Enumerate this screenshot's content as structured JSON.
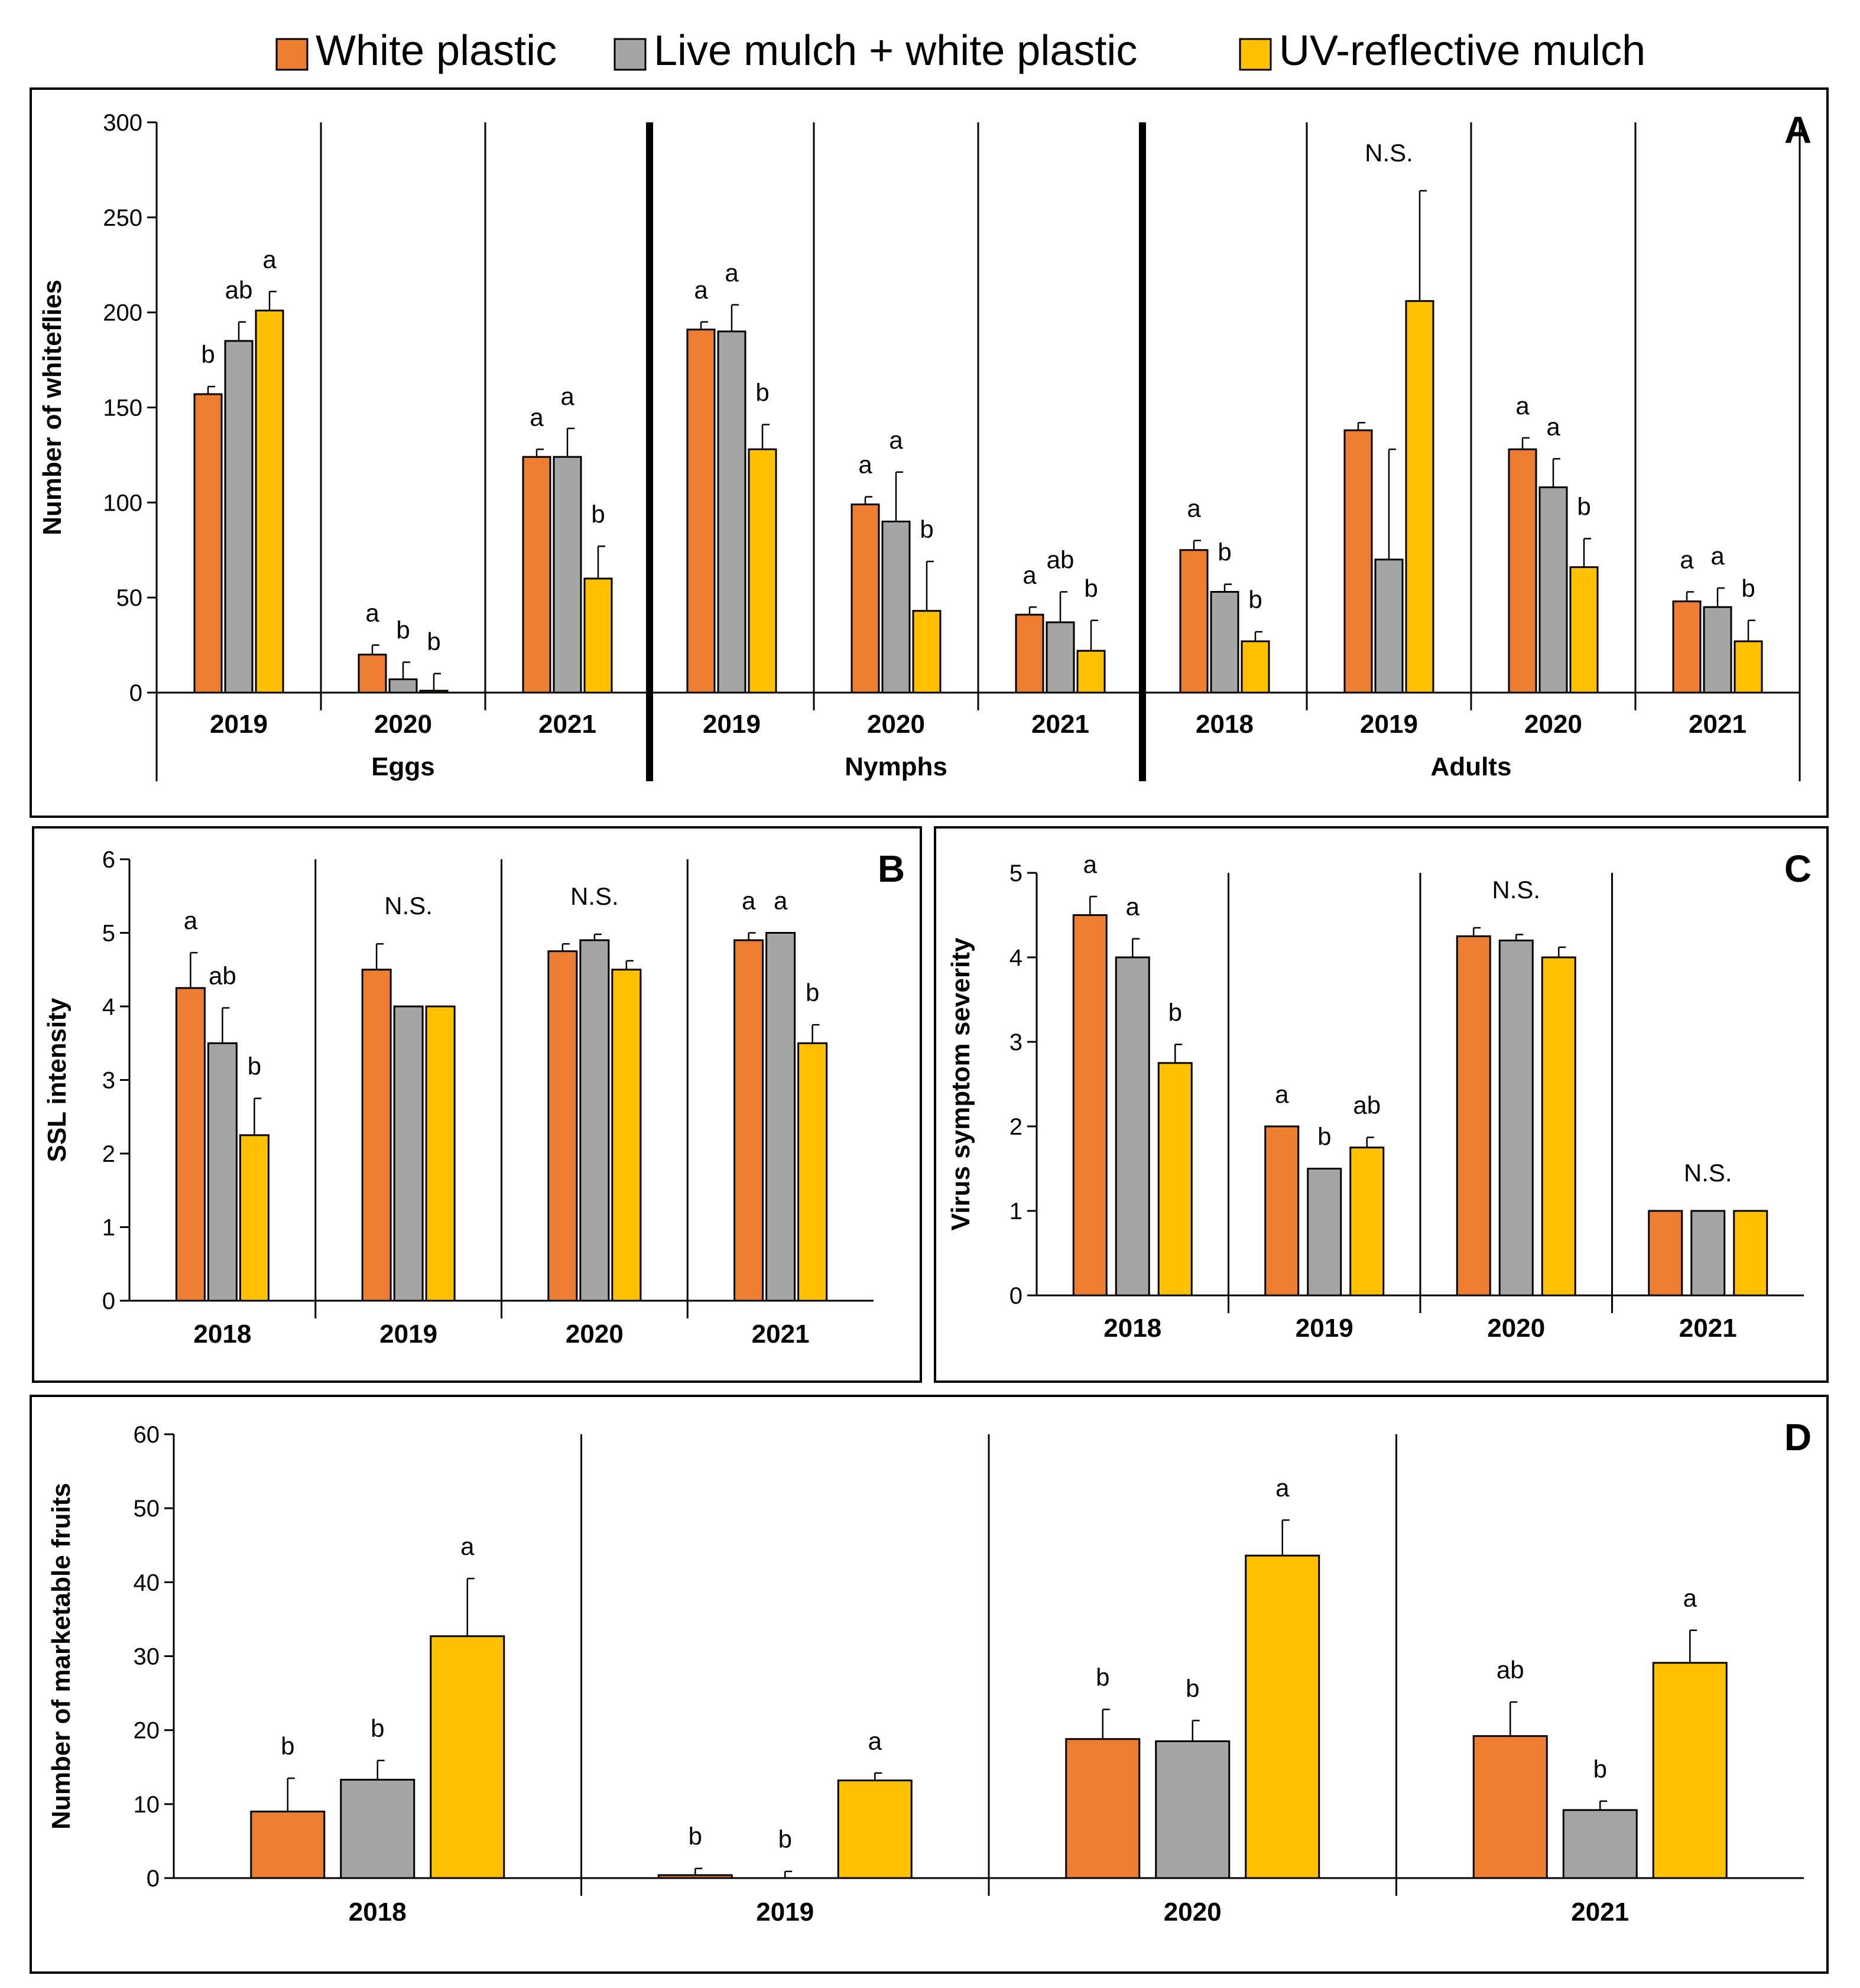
{
  "legend": {
    "items": [
      {
        "label": "White plastic",
        "color": "#ED7D31"
      },
      {
        "label": "Live mulch + white plastic",
        "color": "#A5A5A5"
      },
      {
        "label": "UV-reflective mulch",
        "color": "#FFC000"
      }
    ]
  },
  "chart_data": [
    {
      "id": "A",
      "type": "bar",
      "panel_label": "A",
      "ylabel": "Number of whiteflies",
      "ylim": [
        0,
        300
      ],
      "yticks": [
        0,
        50,
        100,
        150,
        200,
        250,
        300
      ],
      "series_names": [
        "White plastic",
        "Live mulch + white plastic",
        "UV-reflective mulch"
      ],
      "groups": [
        {
          "name": "Eggs",
          "years": [
            {
              "year": "2019",
              "values": [
                157,
                185,
                201
              ],
              "errors": [
                4,
                10,
                10
              ],
              "letters": [
                "b",
                "ab",
                "a"
              ]
            },
            {
              "year": "2020",
              "values": [
                20,
                7,
                1
              ],
              "errors": [
                5,
                9,
                9
              ],
              "letters": [
                "a",
                "b",
                "b"
              ]
            },
            {
              "year": "2021",
              "values": [
                124,
                124,
                60
              ],
              "errors": [
                4,
                15,
                17
              ],
              "letters": [
                "a",
                "a",
                "b"
              ]
            }
          ]
        },
        {
          "name": "Nymphs",
          "years": [
            {
              "year": "2019",
              "values": [
                191,
                190,
                128
              ],
              "errors": [
                4,
                14,
                13
              ],
              "letters": [
                "a",
                "a",
                "b"
              ]
            },
            {
              "year": "2020",
              "values": [
                99,
                90,
                43
              ],
              "errors": [
                4,
                26,
                26
              ],
              "letters": [
                "a",
                "a",
                "b"
              ]
            },
            {
              "year": "2021",
              "values": [
                41,
                37,
                22
              ],
              "errors": [
                4,
                16,
                16
              ],
              "letters": [
                "a",
                "ab",
                "b"
              ]
            }
          ]
        },
        {
          "name": "Adults",
          "years": [
            {
              "year": "2018",
              "values": [
                75,
                53,
                27
              ],
              "errors": [
                5,
                4,
                5
              ],
              "letters": [
                "a",
                "b",
                "b"
              ]
            },
            {
              "year": "2019",
              "values": [
                138,
                70,
                206
              ],
              "errors": [
                4,
                58,
                58
              ],
              "letters": [],
              "note": "N.S."
            },
            {
              "year": "2020",
              "values": [
                128,
                108,
                66
              ],
              "errors": [
                6,
                15,
                15
              ],
              "letters": [
                "a",
                "a",
                "b"
              ]
            },
            {
              "year": "2021",
              "values": [
                48,
                45,
                27
              ],
              "errors": [
                5,
                10,
                11
              ],
              "letters": [
                "a",
                "a",
                "b"
              ]
            }
          ]
        }
      ]
    },
    {
      "id": "B",
      "type": "bar",
      "panel_label": "B",
      "ylabel": "SSL intensity",
      "ylim": [
        0,
        6
      ],
      "yticks": [
        0,
        1,
        2,
        3,
        4,
        5,
        6
      ],
      "series_names": [
        "White plastic",
        "Live mulch + white plastic",
        "UV-reflective mulch"
      ],
      "groups": [
        {
          "name": "",
          "years": [
            {
              "year": "2018",
              "values": [
                4.25,
                3.5,
                2.25
              ],
              "errors": [
                0.48,
                0.48,
                0.5
              ],
              "letters": [
                "a",
                "ab",
                "b"
              ]
            },
            {
              "year": "2019",
              "values": [
                4.5,
                4.0,
                4.0
              ],
              "errors": [
                0.35,
                0,
                0
              ],
              "letters": [],
              "note": "N.S."
            },
            {
              "year": "2020",
              "values": [
                4.75,
                4.9,
                4.5
              ],
              "errors": [
                0.1,
                0.08,
                0.12
              ],
              "letters": [],
              "note": "N.S."
            },
            {
              "year": "2021",
              "values": [
                4.9,
                5.0,
                3.5
              ],
              "errors": [
                0.1,
                0,
                0.25
              ],
              "letters": [
                "a",
                "a",
                "b"
              ]
            }
          ]
        }
      ]
    },
    {
      "id": "C",
      "type": "bar",
      "panel_label": "C",
      "ylabel": "Virus symptom severity",
      "ylim": [
        0,
        5
      ],
      "yticks": [
        0,
        1,
        2,
        3,
        4,
        5
      ],
      "series_names": [
        "White plastic",
        "Live mulch + white plastic",
        "UV-reflective mulch"
      ],
      "groups": [
        {
          "name": "",
          "years": [
            {
              "year": "2018",
              "values": [
                4.5,
                4.0,
                2.75
              ],
              "errors": [
                0.22,
                0.22,
                0.22
              ],
              "letters": [
                "a",
                "a",
                "b"
              ]
            },
            {
              "year": "2019",
              "values": [
                2.0,
                1.5,
                1.75
              ],
              "errors": [
                0,
                0,
                0.12
              ],
              "letters": [
                "a",
                "b",
                "ab"
              ]
            },
            {
              "year": "2020",
              "values": [
                4.25,
                4.2,
                4.0
              ],
              "errors": [
                0.1,
                0.07,
                0.12
              ],
              "letters": [],
              "note": "N.S."
            },
            {
              "year": "2021",
              "values": [
                1.0,
                1.0,
                1.0
              ],
              "errors": [
                0,
                0,
                0
              ],
              "letters": [],
              "note": "N.S."
            }
          ]
        }
      ]
    },
    {
      "id": "D",
      "type": "bar",
      "panel_label": "D",
      "ylabel": "Number of marketable fruits",
      "ylim": [
        0,
        60
      ],
      "yticks": [
        0,
        10,
        20,
        30,
        40,
        50,
        60
      ],
      "series_names": [
        "White plastic",
        "Live mulch + white plastic",
        "UV-reflective mulch"
      ],
      "groups": [
        {
          "name": "",
          "years": [
            {
              "year": "2018",
              "values": [
                9,
                13.3,
                32.7
              ],
              "errors": [
                4.5,
                2.6,
                7.8
              ],
              "letters": [
                "b",
                "b",
                "a"
              ]
            },
            {
              "year": "2019",
              "values": [
                0.4,
                0,
                13.2
              ],
              "errors": [
                0.9,
                0.9,
                1
              ],
              "letters": [
                "b",
                "b",
                "a"
              ]
            },
            {
              "year": "2020",
              "values": [
                18.8,
                18.5,
                43.6
              ],
              "errors": [
                4,
                2.8,
                4.8
              ],
              "letters": [
                "b",
                "b",
                "a"
              ]
            },
            {
              "year": "2021",
              "values": [
                19.2,
                9.2,
                29.1
              ],
              "errors": [
                4.6,
                1.2,
                4.4
              ],
              "letters": [
                "ab",
                "b",
                "a"
              ]
            }
          ]
        }
      ]
    }
  ]
}
